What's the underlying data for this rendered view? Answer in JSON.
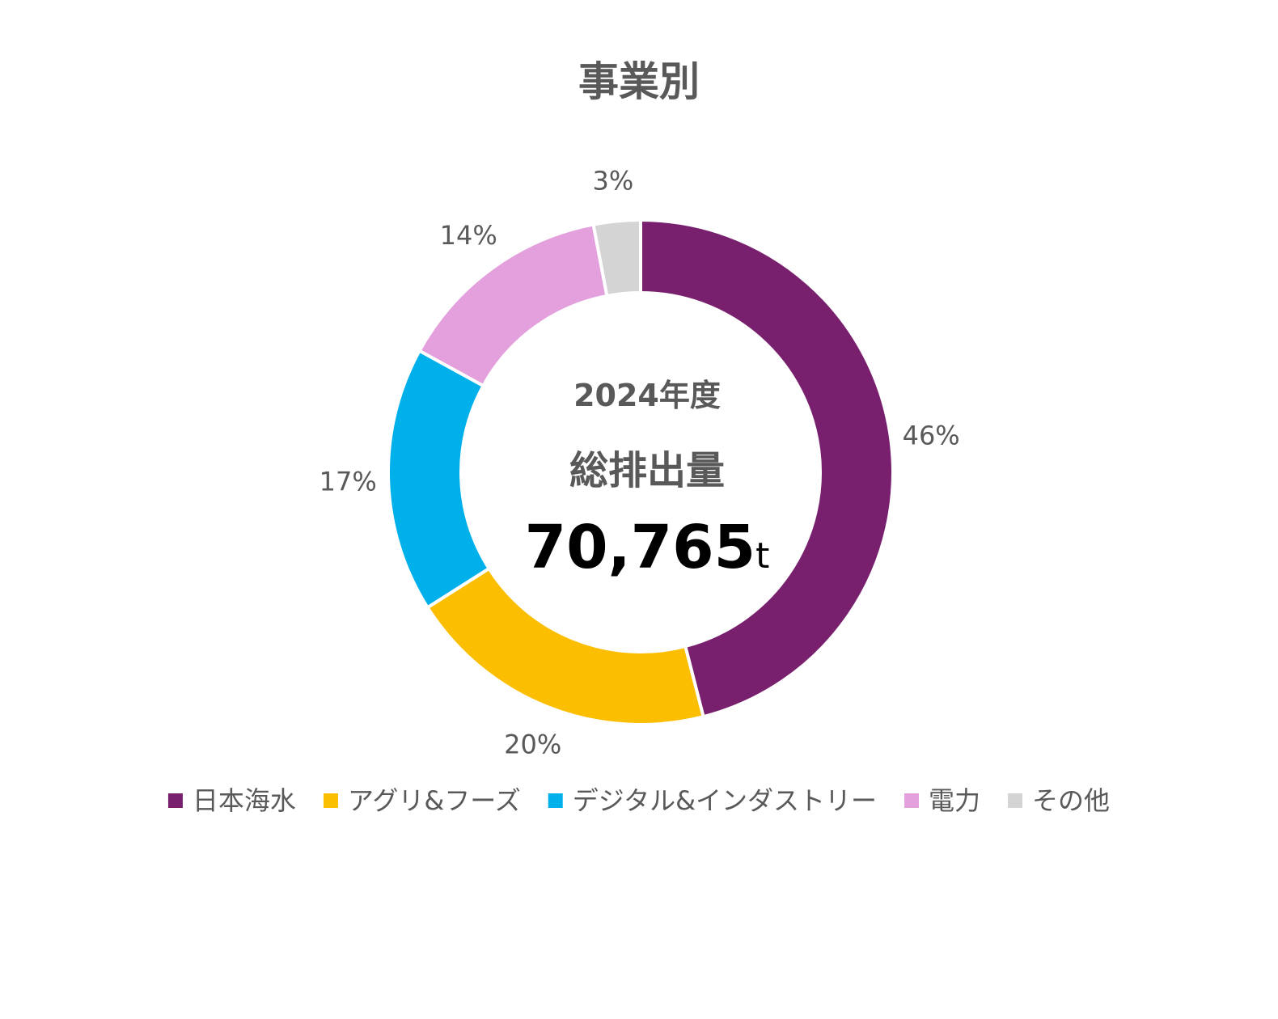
{
  "chart_data": {
    "type": "pie",
    "title": "事業別",
    "center": {
      "year": "2024年度",
      "label": "総排出量",
      "value": "70,765",
      "unit": "t"
    },
    "legend_position": "bottom",
    "series": [
      {
        "name": "日本海水",
        "value": 46,
        "label": "46%",
        "color": "#78206E"
      },
      {
        "name": "アグリ&フーズ",
        "value": 20,
        "label": "20%",
        "color": "#FBBE00"
      },
      {
        "name": "デジタル&インダストリー",
        "value": 17,
        "label": "17%",
        "color": "#00B0EB"
      },
      {
        "name": "電力",
        "value": 14,
        "label": "14%",
        "color": "#E3A0DC"
      },
      {
        "name": "その他",
        "value": 3,
        "label": "3%",
        "color": "#D4D4D4"
      }
    ]
  }
}
